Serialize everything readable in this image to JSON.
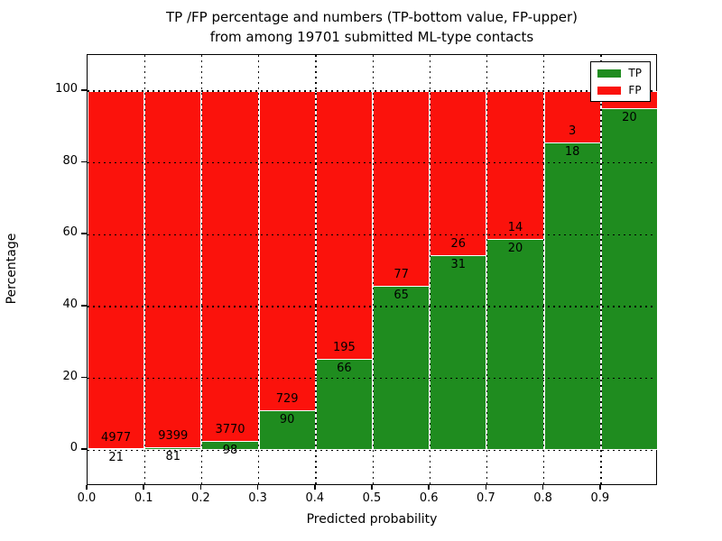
{
  "title": {
    "line1": "TP /FP percentage and numbers (TP-bottom value, FP-upper)",
    "line2": "from among 19701 submitted ML-type contacts"
  },
  "chart_data": {
    "type": "bar",
    "stacked": true,
    "title": "TP /FP percentage and numbers (TP-bottom value, FP-upper) from among 19701 submitted ML-type contacts",
    "xlabel": "Predicted probability",
    "ylabel": "Percentage",
    "xlim": [
      0.0,
      1.0
    ],
    "ylim": [
      -10,
      110
    ],
    "x_tick_labels": [
      "0.0",
      "0.1",
      "0.2",
      "0.3",
      "0.4",
      "0.5",
      "0.6",
      "0.7",
      "0.8",
      "0.9"
    ],
    "y_ticks": [
      0,
      20,
      40,
      60,
      80,
      100
    ],
    "grid": "dotted",
    "legend_position": "upper right",
    "series": [
      {
        "name": "TP",
        "color": "#1f8c1f"
      },
      {
        "name": "FP",
        "color": "#fb120c"
      }
    ],
    "bars": [
      {
        "x0": 0.0,
        "x1": 0.1,
        "tp_label": "21",
        "fp_label": "4977",
        "tp_pct": 0.42
      },
      {
        "x0": 0.1,
        "x1": 0.2,
        "tp_label": "81",
        "fp_label": "9399",
        "tp_pct": 0.85
      },
      {
        "x0": 0.2,
        "x1": 0.3,
        "tp_label": "98",
        "fp_label": "3770",
        "tp_pct": 2.53
      },
      {
        "x0": 0.3,
        "x1": 0.4,
        "tp_label": "90",
        "fp_label": "729",
        "tp_pct": 10.99
      },
      {
        "x0": 0.4,
        "x1": 0.5,
        "tp_label": "66",
        "fp_label": "195",
        "tp_pct": 25.29
      },
      {
        "x0": 0.5,
        "x1": 0.6,
        "tp_label": "65",
        "fp_label": "77",
        "tp_pct": 45.77
      },
      {
        "x0": 0.6,
        "x1": 0.7,
        "tp_label": "31",
        "fp_label": "26",
        "tp_pct": 54.39
      },
      {
        "x0": 0.7,
        "x1": 0.8,
        "tp_label": "20",
        "fp_label": "14",
        "tp_pct": 58.82
      },
      {
        "x0": 0.8,
        "x1": 0.9,
        "tp_label": "18",
        "fp_label": "3",
        "tp_pct": 85.71
      },
      {
        "x0": 0.9,
        "x1": 1.0,
        "tp_label": "20",
        "fp_label": "",
        "tp_pct": 95.24
      }
    ]
  }
}
